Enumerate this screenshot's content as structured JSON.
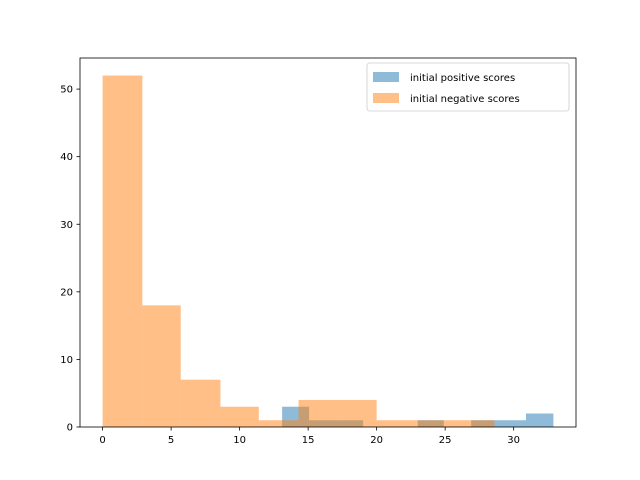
{
  "chart_data": {
    "type": "bar",
    "title": "",
    "xlabel": "",
    "ylabel": "",
    "xlim": [
      -1.65,
      34.55
    ],
    "ylim": [
      0,
      54.6
    ],
    "xticks": [
      0,
      5,
      10,
      15,
      20,
      25,
      30
    ],
    "yticks": [
      0,
      10,
      20,
      30,
      40,
      50
    ],
    "grid": false,
    "legend_position": "upper right",
    "series": [
      {
        "name": "initial positive scores",
        "color": "#1f77b4",
        "opacity": 0.5,
        "bins": [
          {
            "x0": 13.1,
            "x1": 15.07,
            "count": 3
          },
          {
            "x0": 15.07,
            "x1": 17.04,
            "count": 1
          },
          {
            "x0": 17.04,
            "x1": 19.01,
            "count": 1
          },
          {
            "x0": 23.0,
            "x1": 24.9,
            "count": 1
          },
          {
            "x0": 26.9,
            "x1": 28.9,
            "count": 1
          },
          {
            "x0": 28.9,
            "x1": 30.9,
            "count": 1
          },
          {
            "x0": 30.9,
            "x1": 32.9,
            "count": 2
          }
        ]
      },
      {
        "name": "initial negative scores",
        "color": "#ff7f0e",
        "opacity": 0.5,
        "bins": [
          {
            "x0": 0.0,
            "x1": 2.9,
            "count": 52
          },
          {
            "x0": 2.9,
            "x1": 5.7,
            "count": 18
          },
          {
            "x0": 5.7,
            "x1": 8.6,
            "count": 7
          },
          {
            "x0": 8.6,
            "x1": 11.4,
            "count": 3
          },
          {
            "x0": 11.4,
            "x1": 14.3,
            "count": 1
          },
          {
            "x0": 14.3,
            "x1": 17.1,
            "count": 4
          },
          {
            "x0": 17.1,
            "x1": 20.0,
            "count": 4
          },
          {
            "x0": 20.0,
            "x1": 22.9,
            "count": 1
          },
          {
            "x0": 22.9,
            "x1": 25.7,
            "count": 1
          },
          {
            "x0": 25.7,
            "x1": 28.6,
            "count": 1
          }
        ]
      }
    ]
  }
}
